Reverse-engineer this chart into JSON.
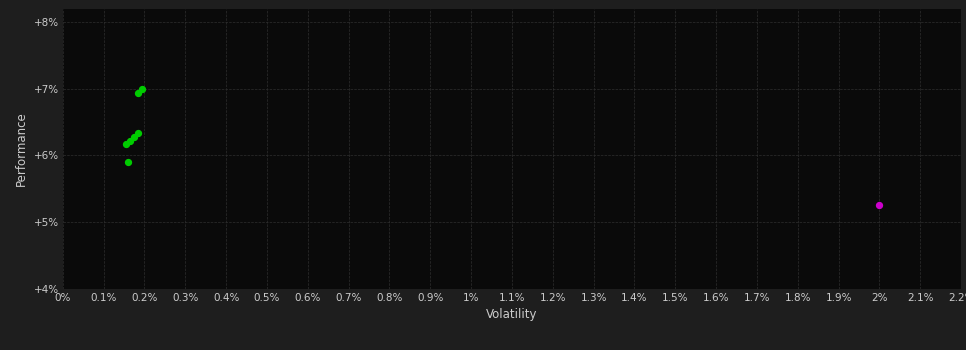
{
  "background_color": "#1e1e1e",
  "plot_bg_color": "#0a0a0a",
  "grid_color": "#2e2e2e",
  "text_color": "#cccccc",
  "xlabel": "Volatility",
  "ylabel": "Performance",
  "xlim": [
    0.0,
    0.022
  ],
  "ylim": [
    0.04,
    0.082
  ],
  "ytick_values": [
    0.04,
    0.05,
    0.06,
    0.07,
    0.08
  ],
  "green_points": [
    [
      0.00185,
      0.0693
    ],
    [
      0.00195,
      0.07
    ],
    [
      0.00155,
      0.0617
    ],
    [
      0.00165,
      0.0622
    ],
    [
      0.00175,
      0.0628
    ],
    [
      0.00185,
      0.0633
    ],
    [
      0.0016,
      0.059
    ]
  ],
  "magenta_points": [
    [
      0.02,
      0.0525
    ]
  ],
  "green_color": "#00cc00",
  "magenta_color": "#cc00cc",
  "marker_size": 18
}
